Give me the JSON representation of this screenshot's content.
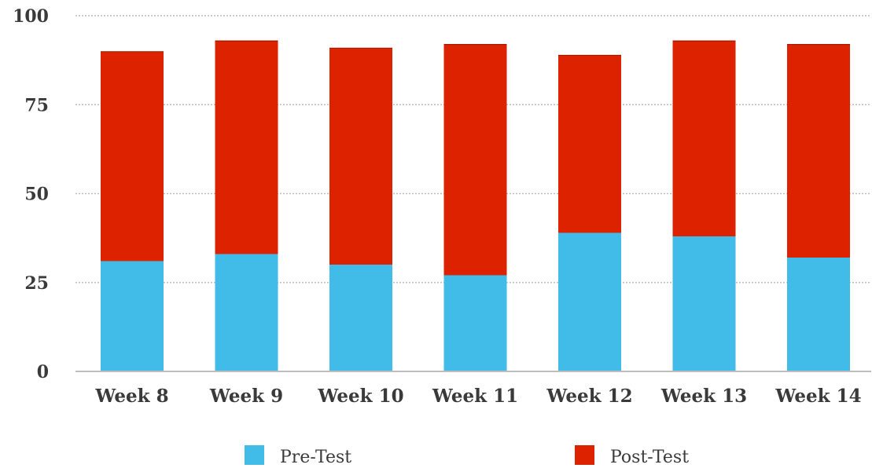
{
  "chart_data": {
    "type": "bar",
    "stacked": true,
    "categories": [
      "Week 8",
      "Week 9",
      "Week 10",
      "Week 11",
      "Week 12",
      "Week 13",
      "Week 14"
    ],
    "series": [
      {
        "name": "Pre-Test",
        "color": "#41bbe8",
        "values": [
          31,
          33,
          30,
          27,
          39,
          38,
          32
        ]
      },
      {
        "name": "Post-Test",
        "color": "#dd2200",
        "values": [
          59,
          60,
          61,
          65,
          50,
          55,
          60
        ]
      }
    ],
    "yticks": [
      "0",
      "25",
      "50",
      "75",
      "100"
    ],
    "ylim": [
      0,
      100
    ],
    "grid": true,
    "legend_position": "bottom"
  }
}
